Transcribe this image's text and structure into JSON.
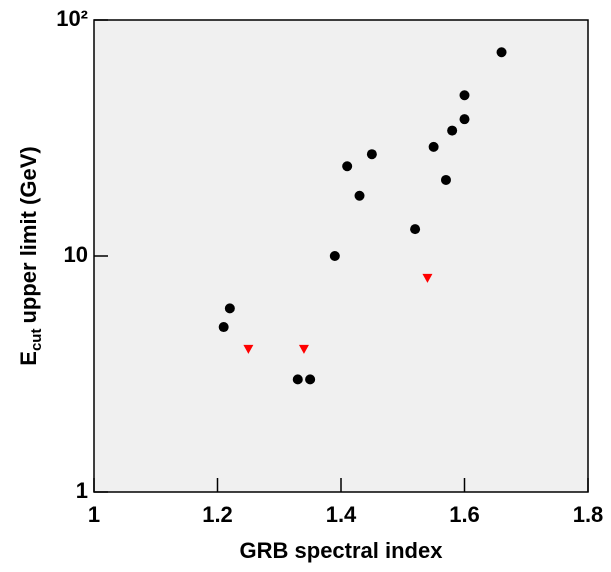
{
  "chart_data": {
    "type": "scatter",
    "log_y": true,
    "grid": false,
    "background": "#f0f0f0",
    "xlabel": "GRB spectral index",
    "ylabel": {
      "main": "E",
      "sub": "cut",
      "rest": "upper limit (GeV)"
    },
    "xlim": [
      1,
      1.8
    ],
    "xticks": [
      1,
      1.2,
      1.4,
      1.6,
      1.8
    ],
    "ylim": [
      1,
      100
    ],
    "yticks": [
      1,
      10,
      {
        "value": 100,
        "label": "10²"
      }
    ],
    "series": [
      {
        "color": "#000000",
        "marker": "circle",
        "x": [
          1.21,
          1.22,
          1.33,
          1.35,
          1.39,
          1.41,
          1.43,
          1.45,
          1.52,
          1.55,
          1.57,
          1.58,
          1.6,
          1.6,
          1.66
        ],
        "values": [
          5,
          6,
          3,
          3,
          10,
          24,
          18,
          27,
          13,
          29,
          21,
          34,
          38,
          48,
          73
        ]
      },
      {
        "color": "#ff0000",
        "marker": "triangle-down",
        "x": [
          1.25,
          1.34,
          1.54
        ],
        "values": [
          4,
          4,
          8
        ]
      }
    ]
  }
}
